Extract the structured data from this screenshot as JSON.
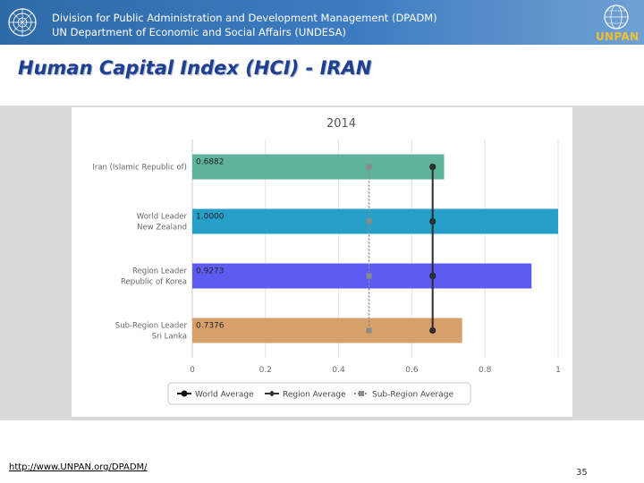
{
  "header": {
    "line1": "Division for Public Administration and Development Management (DPADM)",
    "line2": "UN Department of Economic and Social Affairs (UNDESA)",
    "left_logo_icon": "un-emblem-icon",
    "right_logo_icon": "unpan-globe-icon",
    "right_logo_text": "UNPAN"
  },
  "slide": {
    "title": "Human Capital Index (HCI) - IRAN"
  },
  "chart_data": {
    "type": "bar",
    "orientation": "horizontal",
    "title": "2014",
    "categories": [
      [
        "Iran (Islamic Republic of)"
      ],
      [
        "World Leader",
        "New Zealand"
      ],
      [
        "Region Leader",
        "Republic of Korea"
      ],
      [
        "Sub-Region Leader",
        "Sri Lanka"
      ]
    ],
    "values": [
      0.6882,
      1.0,
      0.9273,
      0.7376
    ],
    "value_labels": [
      "0.6882",
      "1.0000",
      "0.9273",
      "0.7376"
    ],
    "bar_colors": [
      "#5fb39a",
      "#26a0c8",
      "#5c5cf2",
      "#d6a06a"
    ],
    "xlim": [
      0,
      1
    ],
    "xticks": [
      "0",
      "0.2",
      "0.4",
      "0.6",
      "0.8",
      "1"
    ],
    "grid": true,
    "reference_series": [
      {
        "name": "World Average",
        "value": 0.657,
        "marker": "circle",
        "color": "#111111",
        "style": "solid"
      },
      {
        "name": "Region Average",
        "value": 0.657,
        "marker": "diamond",
        "color": "#333333",
        "style": "solid"
      },
      {
        "name": "Sub-Region Average",
        "value": 0.483,
        "marker": "square",
        "color": "#8a8a8a",
        "style": "dotted"
      }
    ],
    "legend_position": "bottom"
  },
  "footer": {
    "link": "http://www.UNPAN.org/DPADM/",
    "page_number": "35"
  }
}
